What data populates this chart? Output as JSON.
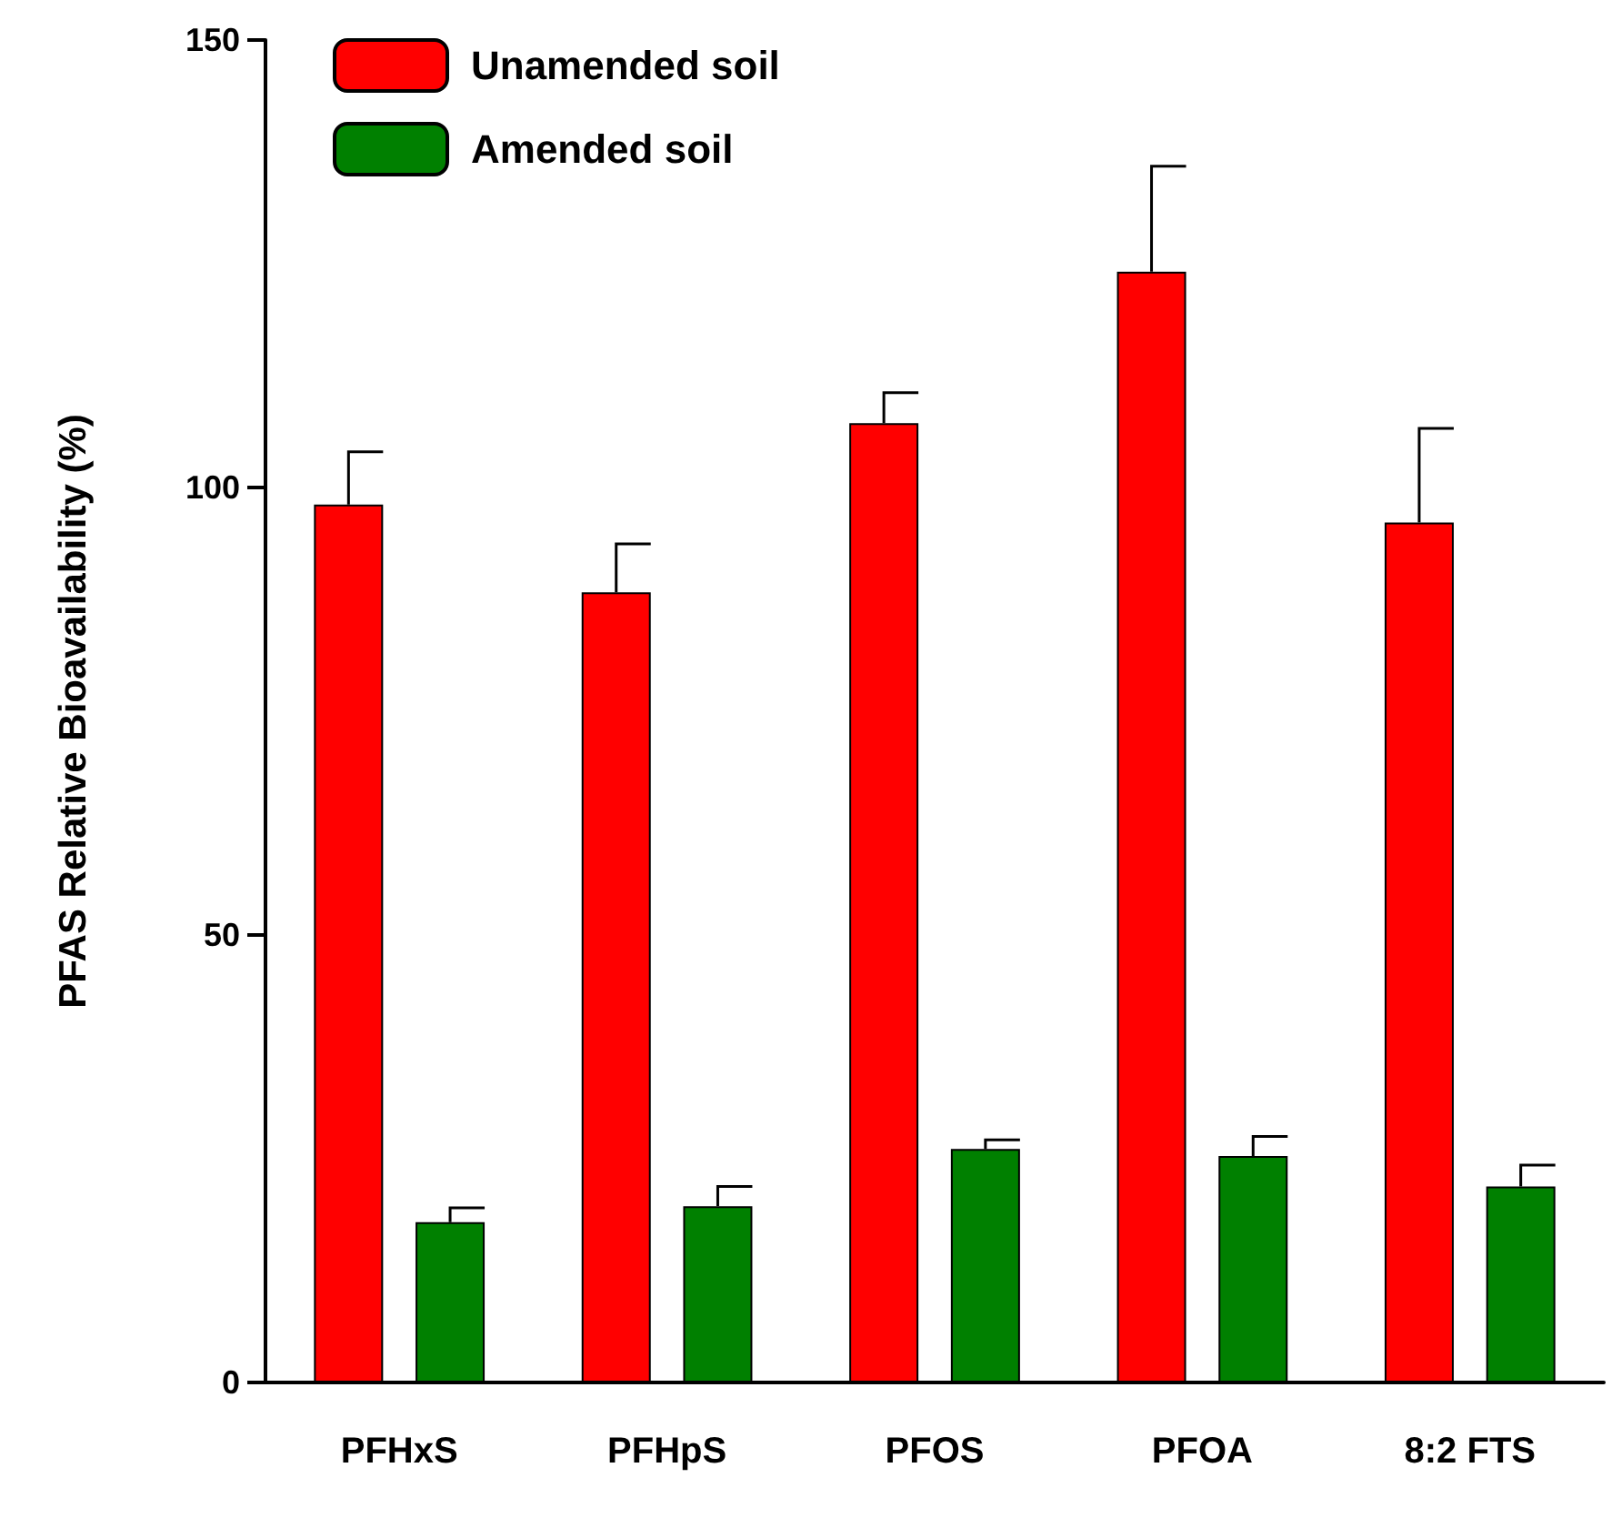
{
  "chart_data": {
    "type": "bar",
    "ylabel": "PFAS Relative Bioavailability (%)",
    "categories": [
      "PFHxS",
      "PFHpS",
      "PFOS",
      "PFOA",
      "8:2 FTS"
    ],
    "series": [
      {
        "name": "Unamended soil",
        "color": "#ff0000",
        "values": [
          98.1,
          88.3,
          107.2,
          124.1,
          96.1
        ],
        "errors": [
          [
            98.1,
            104.0
          ],
          [
            88.3,
            93.7
          ],
          [
            107.2,
            110.6
          ],
          [
            124.1,
            135.9
          ],
          [
            96.1,
            106.6
          ]
        ]
      },
      {
        "name": "Amended soil",
        "color": "#008000",
        "values": [
          17.9,
          19.7,
          26.1,
          25.3,
          21.9
        ],
        "errors": [
          [
            17.9,
            19.5
          ],
          [
            19.7,
            21.9
          ],
          [
            26.1,
            27.1
          ],
          [
            25.3,
            27.5
          ],
          [
            21.9,
            24.3
          ]
        ]
      }
    ],
    "ylim": [
      0,
      150
    ],
    "yticks": [
      0,
      50,
      100,
      150
    ],
    "grid": false,
    "legend": "top left"
  }
}
